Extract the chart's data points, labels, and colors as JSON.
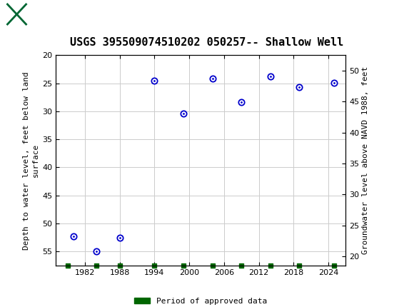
{
  "title": "USGS 395509074510202 050257-- Shallow Well",
  "ylabel_left": "Depth to water level, feet below land\nsurface",
  "ylabel_right": "Groundwater level above NAVD 1988, feet",
  "data_points": [
    {
      "year": 1980,
      "depth": 52.3
    },
    {
      "year": 1984,
      "depth": 55.0
    },
    {
      "year": 1988,
      "depth": 52.6
    },
    {
      "year": 1994,
      "depth": 24.5
    },
    {
      "year": 1999,
      "depth": 30.4
    },
    {
      "year": 2004,
      "depth": 24.1
    },
    {
      "year": 2009,
      "depth": 28.3
    },
    {
      "year": 2014,
      "depth": 23.8
    },
    {
      "year": 2019,
      "depth": 25.7
    },
    {
      "year": 2025,
      "depth": 24.9
    }
  ],
  "approved_years": [
    1979,
    1984,
    1988,
    1994,
    1999,
    2004,
    2009,
    2014,
    2019,
    2025
  ],
  "xlim": [
    1977,
    2027
  ],
  "ylim_left": [
    57.5,
    20.0
  ],
  "ylim_right": [
    18.5,
    52.5
  ],
  "xticks": [
    1982,
    1988,
    1994,
    2000,
    2006,
    2012,
    2018,
    2024
  ],
  "yticks_left": [
    20,
    25,
    30,
    35,
    40,
    45,
    50,
    55
  ],
  "yticks_right": [
    20,
    25,
    30,
    35,
    40,
    45,
    50
  ],
  "point_color": "#0000cc",
  "point_marker": "o",
  "point_size": 6,
  "approved_color": "#006600",
  "approved_marker": "s",
  "approved_size": 4,
  "grid_color": "#cccccc",
  "background_color": "#ffffff",
  "header_color": "#006633",
  "title_fontsize": 11,
  "label_fontsize": 8,
  "tick_fontsize": 8,
  "legend_label": "Period of approved data",
  "font_family": "DejaVu Sans Mono"
}
